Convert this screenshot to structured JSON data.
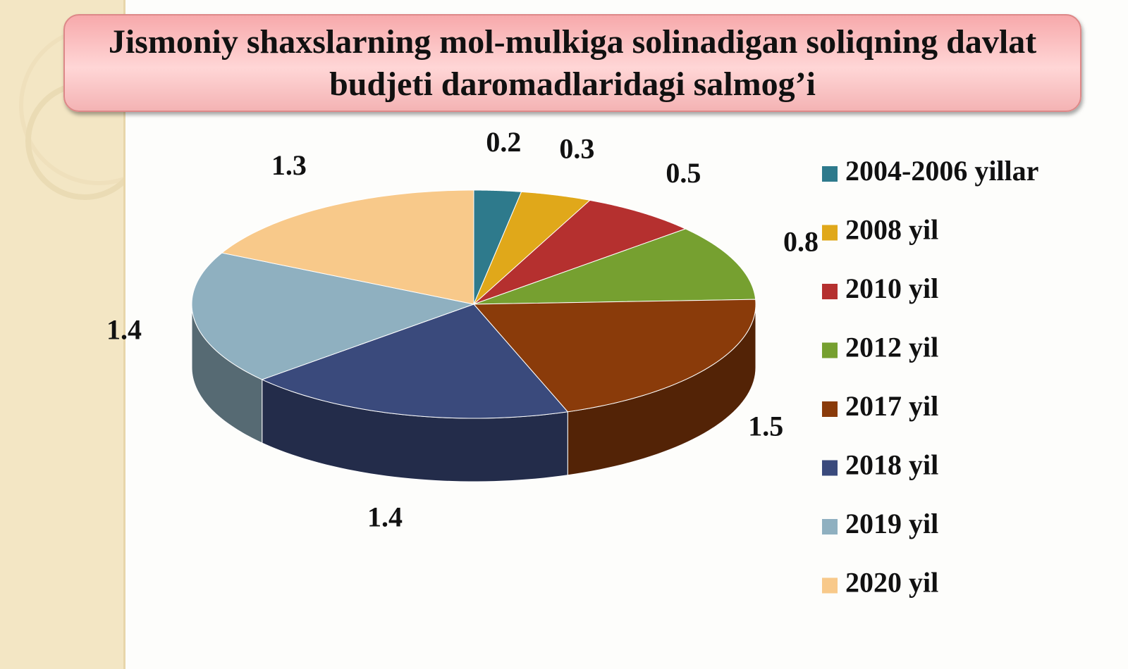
{
  "chart_data": {
    "type": "pie",
    "title": "Jismoniy shaxslarning mol-mulkiga solinadigan soliqning davlat budjeti daromadlaridagi salmog’i",
    "categories": [
      "2004-2006 yillar",
      "2008 yil",
      "2010 yil",
      "2012 yil",
      "2017 yil",
      "2018 yil",
      "2019 yil",
      "2020 yil"
    ],
    "values": [
      0.2,
      0.3,
      0.5,
      0.8,
      1.5,
      1.4,
      1.4,
      1.3
    ],
    "colors": [
      "#2e7a8c",
      "#e0a81a",
      "#b5302f",
      "#76a030",
      "#8a3b0a",
      "#3a4a7c",
      "#8fb0c0",
      "#f8c98a"
    ],
    "legend": "right"
  }
}
